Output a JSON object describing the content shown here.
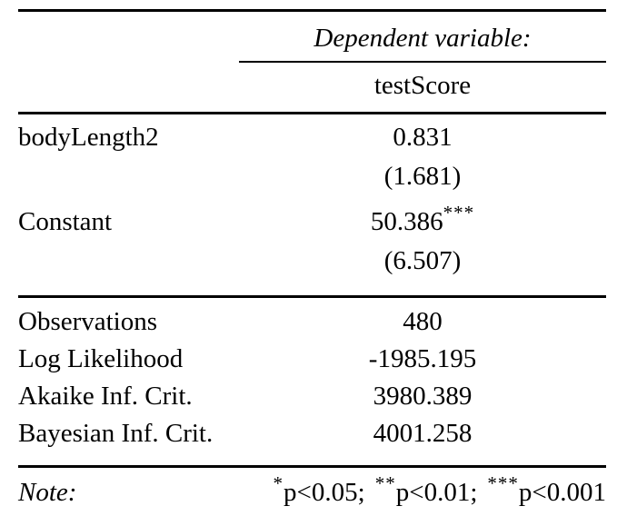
{
  "table": {
    "header": {
      "dependent_variable_label": "Dependent variable:",
      "dependent_variable_name": "testScore"
    },
    "coefficients": [
      {
        "name": "bodyLength2",
        "estimate": "0.831",
        "stars": "",
        "std_error": "(1.681)"
      },
      {
        "name": "Constant",
        "estimate": "50.386",
        "stars": "***",
        "std_error": "(6.507)"
      }
    ],
    "stats": [
      {
        "name": "Observations",
        "value": "480"
      },
      {
        "name": "Log Likelihood",
        "value": "-1985.195"
      },
      {
        "name": "Akaike Inf. Crit.",
        "value": "3980.389"
      },
      {
        "name": "Bayesian Inf. Crit.",
        "value": "4001.258"
      }
    ],
    "note": {
      "label": "Note:",
      "levels": [
        {
          "stars": "*",
          "text": "p<0.05;"
        },
        {
          "stars": "**",
          "text": "p<0.01;"
        },
        {
          "stars": "***",
          "text": "p<0.001"
        }
      ]
    }
  },
  "colors": {
    "background": "#ffffff",
    "text": "#000000",
    "rule": "#000000"
  }
}
